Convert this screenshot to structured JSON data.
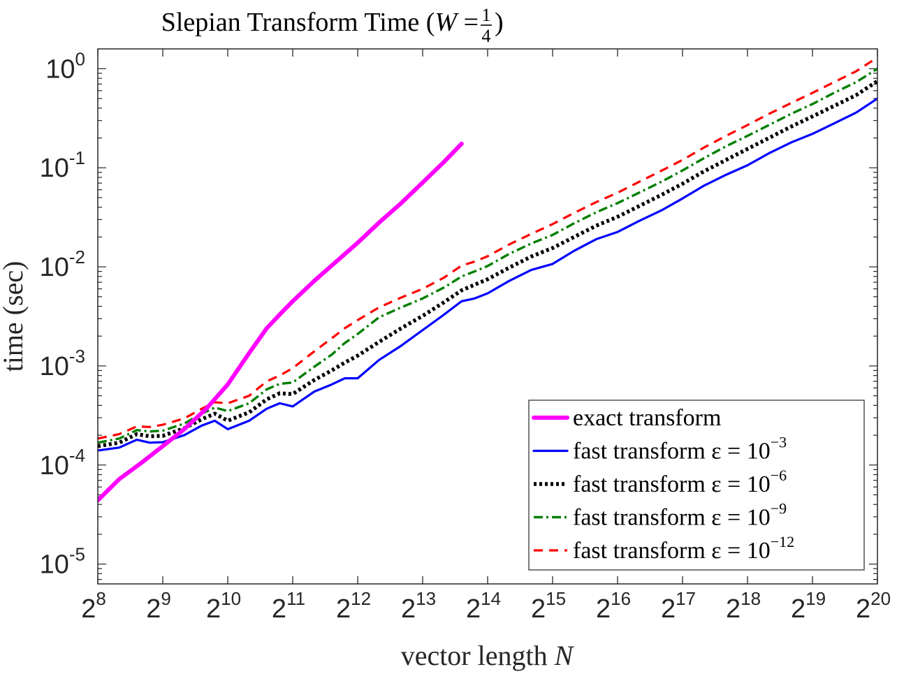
{
  "chart_data": {
    "type": "line",
    "title": {
      "prefix": "Slepian Transform Time (",
      "var": "W",
      "eq": " = ",
      "frac_num": "1",
      "frac_den": "4",
      "suffix": ")"
    },
    "xlabel": {
      "text": "vector length ",
      "var": "N"
    },
    "ylabel": "time (sec)",
    "x_scale": "log2",
    "y_scale": "log10",
    "xlim_exp": [
      8,
      20
    ],
    "ylim_exp": [
      -5.2,
      0.2
    ],
    "x_ticks": [
      {
        "base": "2",
        "exp": "8",
        "value": 8
      },
      {
        "base": "2",
        "exp": "9",
        "value": 9
      },
      {
        "base": "2",
        "exp": "10",
        "value": 10
      },
      {
        "base": "2",
        "exp": "11",
        "value": 11
      },
      {
        "base": "2",
        "exp": "12",
        "value": 12
      },
      {
        "base": "2",
        "exp": "13",
        "value": 13
      },
      {
        "base": "2",
        "exp": "14",
        "value": 14
      },
      {
        "base": "2",
        "exp": "15",
        "value": 15
      },
      {
        "base": "2",
        "exp": "16",
        "value": 16
      },
      {
        "base": "2",
        "exp": "17",
        "value": 17
      },
      {
        "base": "2",
        "exp": "18",
        "value": 18
      },
      {
        "base": "2",
        "exp": "19",
        "value": 19
      },
      {
        "base": "2",
        "exp": "20",
        "value": 20
      }
    ],
    "y_ticks": [
      {
        "base": "10",
        "exp": "0",
        "value": 0
      },
      {
        "base": "10",
        "exp": "-1",
        "value": -1
      },
      {
        "base": "10",
        "exp": "-2",
        "value": -2
      },
      {
        "base": "10",
        "exp": "-3",
        "value": -3
      },
      {
        "base": "10",
        "exp": "-4",
        "value": -4
      },
      {
        "base": "10",
        "exp": "-5",
        "value": -5
      }
    ],
    "legend_position": "bottom-right",
    "series": [
      {
        "name": "exact transform",
        "label_text": "exact transform",
        "label_exp": "",
        "color": "#ff00ff",
        "dash": "solid",
        "log2_N": [
          8,
          8.33,
          8.67,
          9,
          9.33,
          9.67,
          10,
          10.33,
          10.6,
          10.8,
          11,
          11.33,
          11.67,
          12,
          12.33,
          12.67,
          13,
          13.33,
          13.6
        ],
        "time": [
          4.4e-05,
          7.2e-05,
          0.000105,
          0.000155,
          0.00023,
          0.00037,
          0.00065,
          0.00135,
          0.0024,
          0.0033,
          0.0045,
          0.0072,
          0.0113,
          0.0175,
          0.028,
          0.044,
          0.071,
          0.115,
          0.175
        ]
      },
      {
        "name": "fast transform eps=1e-3",
        "label_text": "fast transform ε = 10",
        "label_exp": "−3",
        "color": "#0000ff",
        "dash": "solid",
        "log2_N": [
          8,
          8.33,
          8.6,
          8.8,
          9,
          9.33,
          9.6,
          9.8,
          10,
          10.33,
          10.6,
          10.8,
          11,
          11.33,
          11.6,
          11.8,
          12,
          12.33,
          12.67,
          13,
          13.33,
          13.6,
          13.8,
          14,
          14.33,
          14.67,
          15,
          15.33,
          15.67,
          16,
          16.33,
          16.67,
          17,
          17.33,
          17.67,
          18,
          18.33,
          18.67,
          19,
          19.33,
          19.67,
          20
        ],
        "time": [
          0.00014,
          0.00015,
          0.00018,
          0.000168,
          0.00017,
          0.0002,
          0.00025,
          0.00028,
          0.00023,
          0.00028,
          0.00037,
          0.00042,
          0.00039,
          0.00055,
          0.00065,
          0.00075,
          0.00075,
          0.00115,
          0.0016,
          0.0023,
          0.0033,
          0.0045,
          0.0048,
          0.0054,
          0.0072,
          0.0093,
          0.0107,
          0.0145,
          0.019,
          0.0225,
          0.029,
          0.037,
          0.049,
          0.066,
          0.085,
          0.106,
          0.14,
          0.18,
          0.22,
          0.28,
          0.36,
          0.5
        ]
      },
      {
        "name": "fast transform eps=1e-6",
        "label_text": "fast transform ε = 10",
        "label_exp": "−6",
        "color": "#000000",
        "dash": "dotted",
        "log2_N": [
          8,
          8.33,
          8.6,
          8.8,
          9,
          9.33,
          9.6,
          9.8,
          10,
          10.33,
          10.6,
          10.8,
          11,
          11.33,
          11.6,
          11.8,
          12,
          12.33,
          12.67,
          13,
          13.33,
          13.6,
          13.8,
          14,
          14.33,
          14.67,
          15,
          15.33,
          15.67,
          16,
          16.33,
          16.67,
          17,
          17.33,
          17.67,
          18,
          18.33,
          18.67,
          19,
          19.33,
          19.67,
          20
        ],
        "time": [
          0.000155,
          0.000168,
          0.000205,
          0.000195,
          0.000197,
          0.000235,
          0.00029,
          0.00033,
          0.00028,
          0.00034,
          0.00046,
          0.00053,
          0.00052,
          0.00072,
          0.0009,
          0.00108,
          0.00127,
          0.00175,
          0.0024,
          0.0032,
          0.0044,
          0.0058,
          0.0066,
          0.0075,
          0.0098,
          0.0127,
          0.0155,
          0.02,
          0.026,
          0.032,
          0.041,
          0.053,
          0.069,
          0.092,
          0.12,
          0.155,
          0.2,
          0.26,
          0.33,
          0.42,
          0.54,
          0.75
        ]
      },
      {
        "name": "fast transform eps=1e-9",
        "label_text": "fast transform ε = 10",
        "label_exp": "−9",
        "color": "#007f00",
        "dash": "dashdot",
        "log2_N": [
          8,
          8.33,
          8.6,
          8.8,
          9,
          9.33,
          9.6,
          9.8,
          10,
          10.33,
          10.6,
          10.8,
          11,
          11.33,
          11.6,
          11.8,
          12,
          12.33,
          12.67,
          13,
          13.33,
          13.6,
          13.8,
          14,
          14.33,
          14.67,
          15,
          15.33,
          15.67,
          16,
          16.33,
          16.67,
          17,
          17.33,
          17.67,
          18,
          18.33,
          18.67,
          19,
          19.33,
          19.67,
          20
        ],
        "time": [
          0.000168,
          0.000185,
          0.000225,
          0.000218,
          0.000222,
          0.000262,
          0.00033,
          0.00038,
          0.00035,
          0.00042,
          0.00058,
          0.00066,
          0.00068,
          0.00098,
          0.0013,
          0.0017,
          0.0021,
          0.0031,
          0.0039,
          0.0048,
          0.0062,
          0.008,
          0.009,
          0.0102,
          0.0135,
          0.0172,
          0.021,
          0.0275,
          0.0355,
          0.044,
          0.056,
          0.072,
          0.094,
          0.125,
          0.165,
          0.21,
          0.27,
          0.35,
          0.44,
          0.57,
          0.73,
          1.0
        ]
      },
      {
        "name": "fast transform eps=1e-12",
        "label_text": "fast transform ε = 10",
        "label_exp": "−12",
        "color": "#ff0000",
        "dash": "dashed",
        "log2_N": [
          8,
          8.33,
          8.6,
          8.8,
          9,
          9.33,
          9.6,
          9.8,
          10,
          10.33,
          10.6,
          10.8,
          11,
          11.33,
          11.6,
          11.8,
          12,
          12.33,
          12.67,
          13,
          13.33,
          13.6,
          13.8,
          14,
          14.33,
          14.67,
          15,
          15.33,
          15.67,
          16,
          16.33,
          16.67,
          17,
          17.33,
          17.67,
          18,
          18.33,
          18.67,
          19,
          19.33,
          19.67,
          20
        ],
        "time": [
          0.000185,
          0.000205,
          0.000245,
          0.000242,
          0.000255,
          0.000295,
          0.00037,
          0.00043,
          0.00042,
          0.0005,
          0.0007,
          0.0008,
          0.00095,
          0.0014,
          0.0019,
          0.0024,
          0.0029,
          0.0039,
          0.0049,
          0.006,
          0.0078,
          0.0103,
          0.0113,
          0.0128,
          0.0168,
          0.0215,
          0.027,
          0.035,
          0.045,
          0.056,
          0.072,
          0.093,
          0.12,
          0.16,
          0.21,
          0.27,
          0.35,
          0.45,
          0.57,
          0.73,
          0.94,
          1.3
        ]
      }
    ]
  }
}
